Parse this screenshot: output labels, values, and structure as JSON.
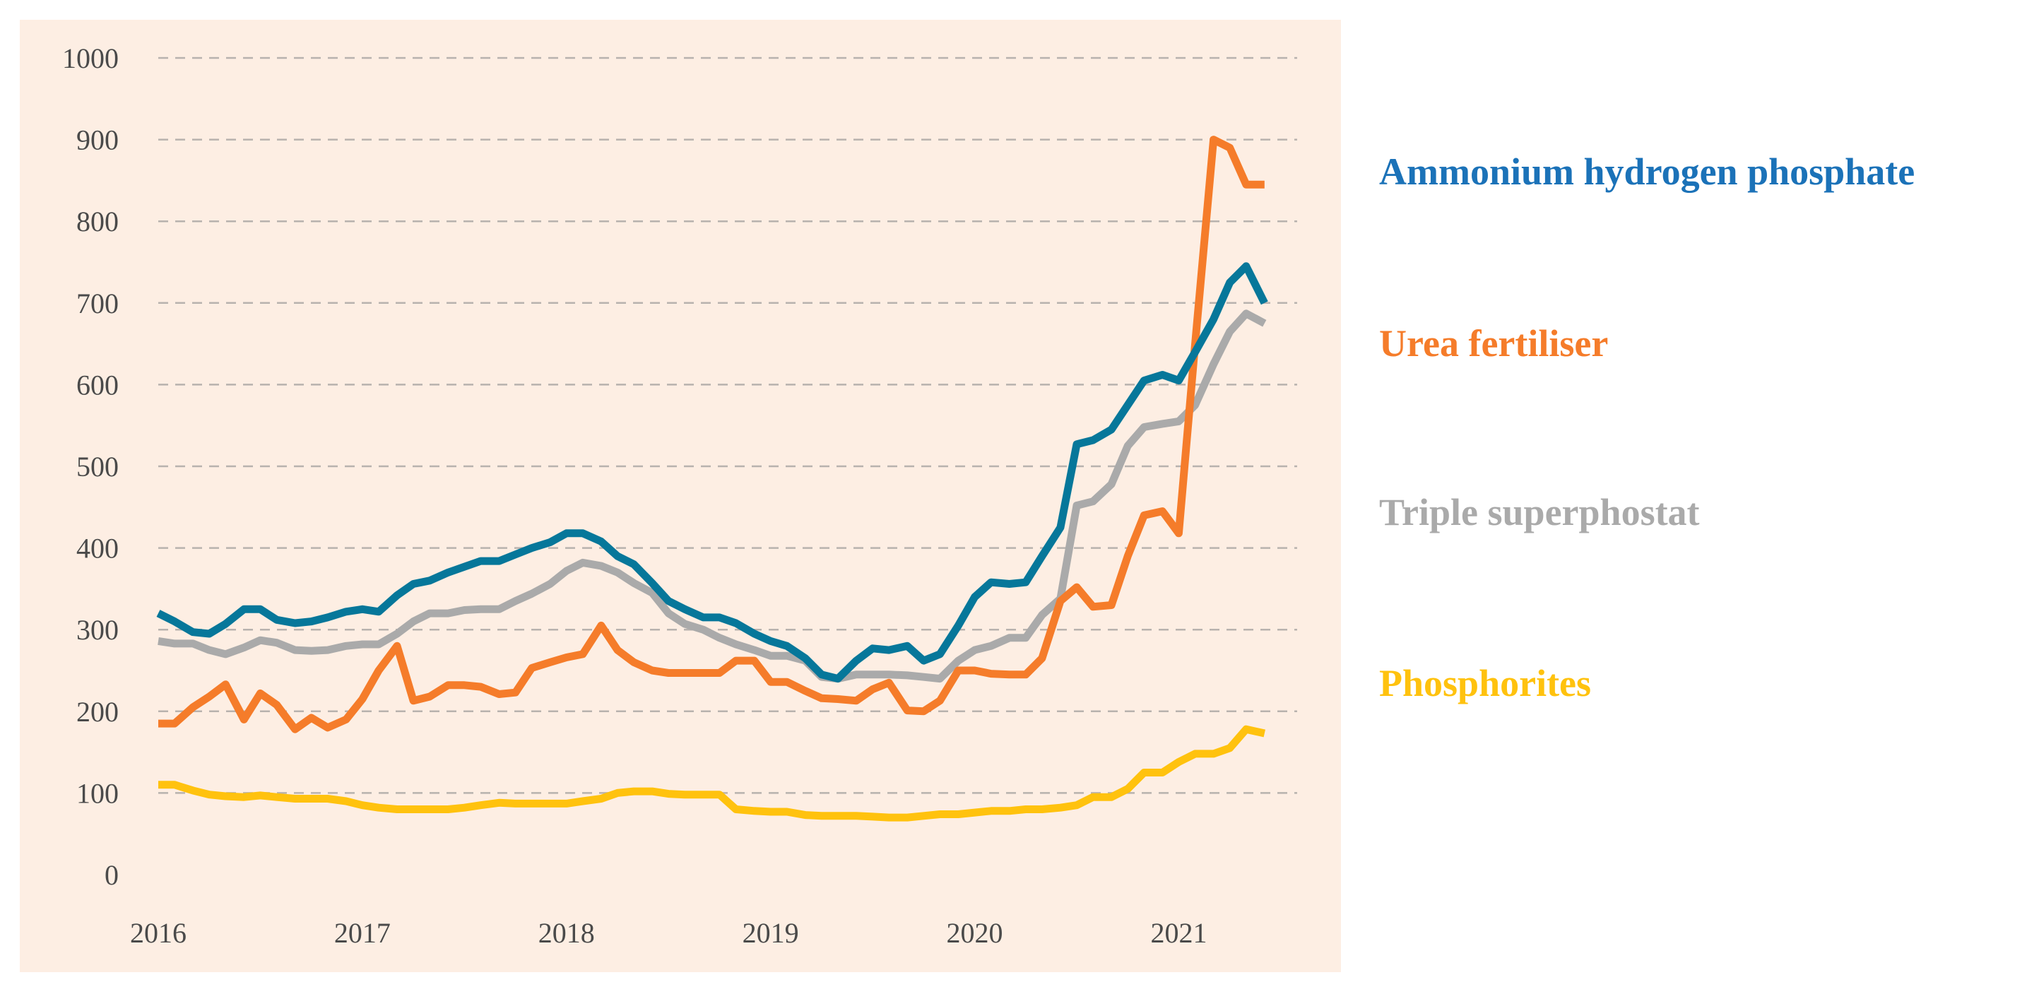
{
  "colors": {
    "background_panel": "#fdeee3",
    "grid": "#b8b2ae",
    "axis_text": "#4a4a4a",
    "ammonium": "#06779a",
    "ammonium_label": "#1b72b8",
    "urea": "#f57c2a",
    "triple": "#aaaaaa",
    "phosphorites": "#ffc20e"
  },
  "chart_data": {
    "type": "line",
    "title": "",
    "xlabel": "",
    "ylabel": "",
    "xlim": [
      2016,
      2021.58
    ],
    "ylim": [
      0,
      1000
    ],
    "y_ticks": [
      "0",
      "100",
      "200",
      "300",
      "400",
      "500",
      "600",
      "700",
      "800",
      "900",
      "1000"
    ],
    "x_ticks": [
      "2016",
      "2017",
      "2018",
      "2019",
      "2020",
      "2021"
    ],
    "grid": true,
    "legend_position": "right",
    "x": [
      2016.0,
      2016.08,
      2016.17,
      2016.25,
      2016.33,
      2016.42,
      2016.5,
      2016.58,
      2016.67,
      2016.75,
      2016.83,
      2016.92,
      2017.0,
      2017.08,
      2017.17,
      2017.25,
      2017.33,
      2017.42,
      2017.5,
      2017.58,
      2017.67,
      2017.75,
      2017.83,
      2017.92,
      2018.0,
      2018.08,
      2018.17,
      2018.25,
      2018.33,
      2018.42,
      2018.5,
      2018.58,
      2018.67,
      2018.75,
      2018.83,
      2018.92,
      2019.0,
      2019.08,
      2019.17,
      2019.25,
      2019.33,
      2019.42,
      2019.5,
      2019.58,
      2019.67,
      2019.75,
      2019.83,
      2019.92,
      2020.0,
      2020.08,
      2020.17,
      2020.25,
      2020.33,
      2020.42,
      2020.5,
      2020.58,
      2020.67,
      2020.75,
      2020.83,
      2020.92,
      2021.0,
      2021.08,
      2021.17,
      2021.25,
      2021.33,
      2021.42
    ],
    "series": [
      {
        "name": "Ammonium hydrogen phosphate",
        "color_key": "ammonium",
        "values": [
          320,
          310,
          297,
          295,
          307,
          325,
          325,
          312,
          308,
          310,
          315,
          322,
          325,
          322,
          342,
          356,
          360,
          370,
          377,
          384,
          384,
          392,
          400,
          407,
          418,
          418,
          408,
          390,
          380,
          357,
          335,
          325,
          315,
          315,
          308,
          295,
          286,
          280,
          265,
          245,
          240,
          262,
          277,
          275,
          280,
          262,
          270,
          305,
          340,
          358,
          356,
          358,
          390,
          425,
          527,
          532,
          545,
          575,
          605,
          612,
          605,
          640,
          680,
          725,
          745,
          700
        ]
      },
      {
        "name": "Urea fertiliser",
        "color_key": "urea",
        "values": [
          185,
          185,
          205,
          218,
          233,
          190,
          222,
          208,
          178,
          192,
          180,
          190,
          215,
          250,
          280,
          213,
          218,
          232,
          232,
          230,
          221,
          223,
          253,
          260,
          266,
          270,
          305,
          275,
          260,
          250,
          247,
          247,
          247,
          247,
          262,
          262,
          236,
          236,
          225,
          216,
          215,
          213,
          227,
          235,
          201,
          200,
          213,
          250,
          250,
          246,
          245,
          245,
          265,
          335,
          352,
          328,
          330,
          390,
          440,
          445,
          418,
          650,
          900,
          890,
          845,
          845
        ]
      },
      {
        "name": "Triple superphostat",
        "color_key": "triple",
        "values": [
          286,
          283,
          283,
          275,
          270,
          278,
          287,
          284,
          275,
          274,
          275,
          280,
          282,
          282,
          295,
          310,
          320,
          320,
          324,
          325,
          325,
          335,
          344,
          356,
          372,
          382,
          378,
          370,
          357,
          345,
          320,
          307,
          300,
          290,
          282,
          275,
          268,
          268,
          262,
          242,
          240,
          245,
          245,
          245,
          244,
          242,
          240,
          262,
          275,
          280,
          290,
          290,
          318,
          338,
          452,
          457,
          478,
          525,
          548,
          552,
          555,
          575,
          625,
          665,
          687,
          675
        ]
      },
      {
        "name": "Phosphorites",
        "color_key": "phosphorites",
        "values": [
          110,
          110,
          103,
          98,
          96,
          95,
          97,
          95,
          93,
          93,
          93,
          90,
          85,
          82,
          80,
          80,
          80,
          80,
          82,
          85,
          88,
          87,
          87,
          87,
          87,
          90,
          93,
          100,
          102,
          102,
          99,
          98,
          98,
          98,
          80,
          78,
          77,
          77,
          73,
          72,
          72,
          72,
          71,
          70,
          70,
          72,
          74,
          74,
          76,
          78,
          78,
          80,
          80,
          82,
          85,
          95,
          95,
          105,
          125,
          125,
          138,
          148,
          148,
          155,
          178,
          173
        ]
      }
    ]
  },
  "legend": {
    "ammonium": "Ammonium hydrogen phosphate",
    "urea": "Urea fertiliser",
    "triple": "Triple superphostat",
    "phosphorites": "Phosphorites"
  }
}
